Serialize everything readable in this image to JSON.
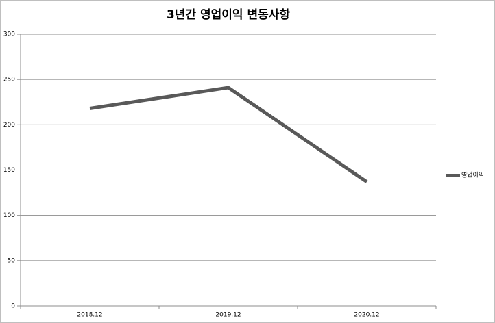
{
  "chart_data": {
    "type": "line",
    "title": "3년간 영업이익 변동사항",
    "categories": [
      "2018.12",
      "2019.12",
      "2020.12"
    ],
    "series": [
      {
        "name": "영업이익",
        "color": "#595959",
        "values": [
          218,
          241,
          137
        ]
      }
    ],
    "ylim": [
      0,
      300
    ],
    "yticks": [
      0,
      50,
      100,
      150,
      200,
      250,
      300
    ],
    "grid": true,
    "legend": "right"
  }
}
